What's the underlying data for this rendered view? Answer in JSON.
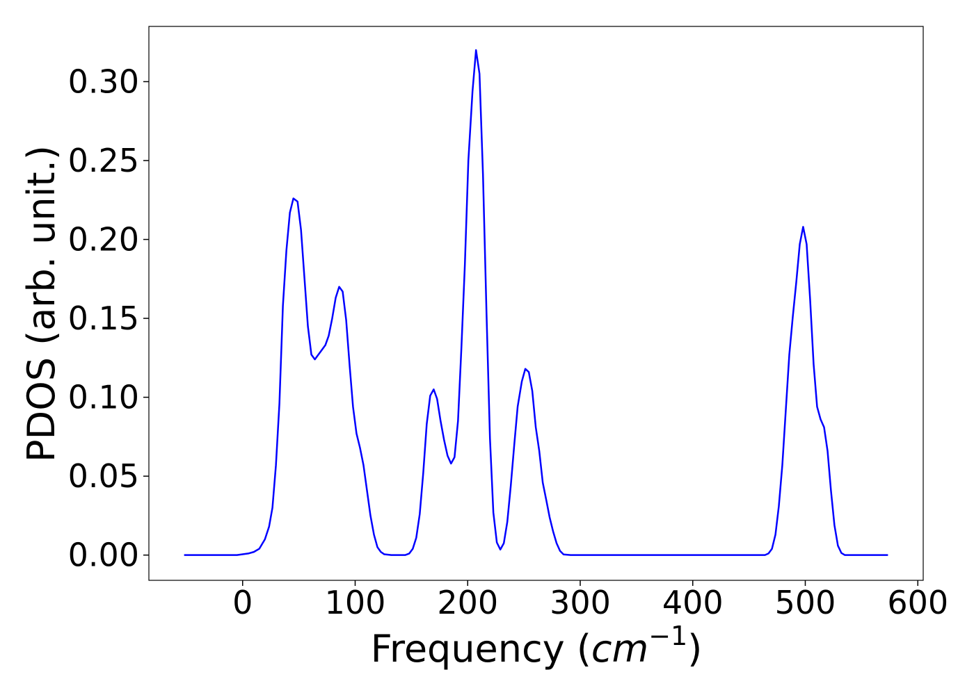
{
  "chart_data": {
    "type": "line",
    "xlabel": [
      "Frequency (",
      "cm",
      "−1",
      ")"
    ],
    "ylabel": "PDOS (arb. unit.)",
    "xlim": [
      -83.3,
      604.8
    ],
    "ylim": [
      -0.016,
      0.335
    ],
    "xticks": [
      0,
      100,
      200,
      300,
      400,
      500,
      600
    ],
    "yticks": [
      {
        "value": 0,
        "label": "0.00"
      },
      {
        "value": 0.05,
        "label": "0.05"
      },
      {
        "value": 0.1,
        "label": "0.10"
      },
      {
        "value": 0.15,
        "label": "0.15"
      },
      {
        "value": 0.2,
        "label": "0.20"
      },
      {
        "value": 0.25,
        "label": "0.25"
      },
      {
        "value": 0.3,
        "label": "0.30"
      }
    ],
    "grid": false,
    "x": [
      -52,
      -5,
      0,
      5,
      10,
      14.8,
      19.8,
      23.5,
      26.5,
      29.6,
      32.7,
      35.8,
      38.9,
      42.0,
      45.1,
      48.8,
      51.9,
      54.9,
      58.0,
      61.1,
      64.2,
      67.3,
      70.4,
      73.5,
      76.5,
      79.6,
      82.7,
      85.8,
      88.9,
      92.0,
      95.1,
      98.1,
      101.2,
      104.3,
      107.4,
      110.5,
      113.6,
      116.7,
      119.8,
      122.8,
      125.9,
      132.1,
      144.4,
      148.1,
      151.2,
      154.3,
      157.4,
      160.5,
      163.6,
      166.7,
      169.8,
      172.8,
      175.9,
      179.0,
      182.1,
      185.2,
      188.3,
      191.4,
      194.4,
      197.5,
      200.6,
      204.3,
      207.4,
      210.5,
      213.6,
      216.7,
      219.8,
      222.8,
      225.9,
      229.0,
      232.1,
      235.2,
      238.3,
      241.4,
      244.4,
      248.1,
      251.2,
      254.3,
      257.4,
      260.5,
      263.6,
      266.7,
      269.8,
      272.8,
      275.9,
      279.0,
      282.1,
      285.2,
      291.4,
      464.2,
      467.3,
      470.4,
      473.5,
      476.5,
      479.6,
      482.7,
      485.8,
      488.9,
      492.0,
      495.1,
      498.1,
      501.2,
      504.3,
      507.4,
      510.5,
      513.6,
      516.7,
      519.8,
      522.8,
      525.9,
      529.0,
      532.1,
      535.2,
      573.5
    ],
    "series": [
      {
        "color": "#0000ff",
        "values": [
          0,
          0,
          0.0005,
          0.001,
          0.002,
          0.004,
          0.01,
          0.018,
          0.03,
          0.057,
          0.096,
          0.158,
          0.193,
          0.217,
          0.226,
          0.224,
          0.206,
          0.176,
          0.145,
          0.127,
          0.124,
          0.127,
          0.13,
          0.133,
          0.139,
          0.15,
          0.163,
          0.17,
          0.167,
          0.149,
          0.12,
          0.094,
          0.077,
          0.068,
          0.057,
          0.041,
          0.025,
          0.013,
          0.005,
          0.002,
          0.0005,
          0,
          0,
          0.001,
          0.004,
          0.011,
          0.026,
          0.052,
          0.083,
          0.101,
          0.105,
          0.099,
          0.085,
          0.073,
          0.063,
          0.058,
          0.062,
          0.085,
          0.131,
          0.184,
          0.25,
          0.294,
          0.32,
          0.305,
          0.241,
          0.154,
          0.074,
          0.027,
          0.008,
          0.0035,
          0.0075,
          0.021,
          0.044,
          0.07,
          0.094,
          0.11,
          0.118,
          0.116,
          0.104,
          0.081,
          0.066,
          0.046,
          0.035,
          0.024,
          0.015,
          0.0075,
          0.0026,
          0.0004,
          0,
          0,
          0.001,
          0.004,
          0.013,
          0.031,
          0.057,
          0.092,
          0.127,
          0.151,
          0.173,
          0.197,
          0.208,
          0.197,
          0.162,
          0.121,
          0.094,
          0.086,
          0.081,
          0.066,
          0.041,
          0.019,
          0.006,
          0.0013,
          0,
          0
        ]
      }
    ]
  }
}
